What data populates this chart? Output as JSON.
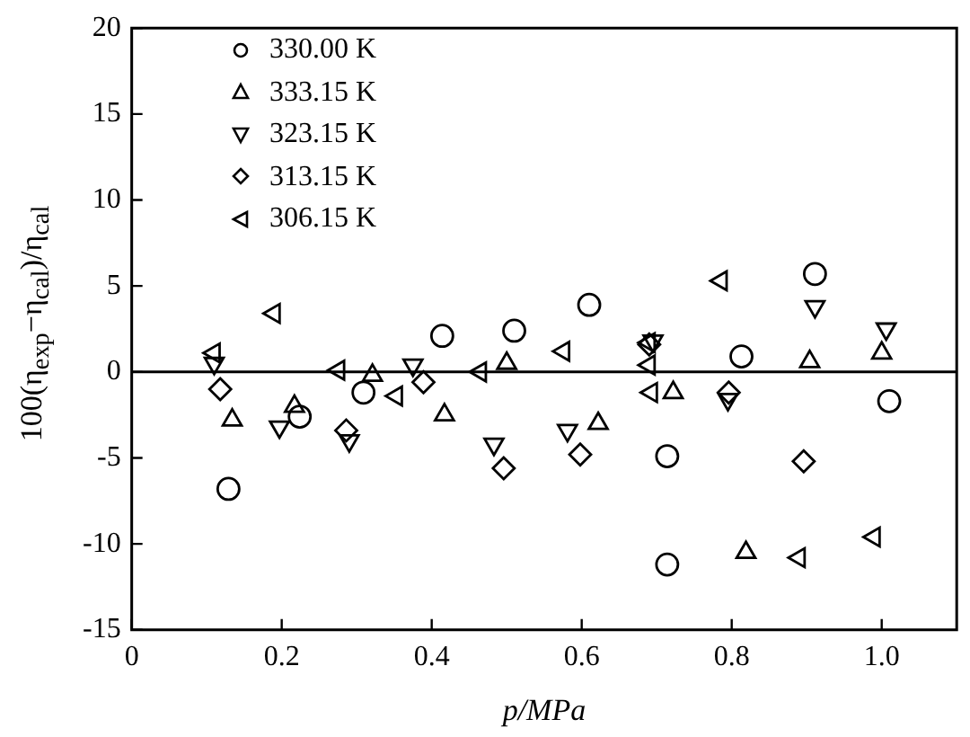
{
  "chart_data": {
    "type": "scatter",
    "xlabel": "p/MPa",
    "ylabel": "100(η$_{exp}$−η$_{cal}$)/η$_{cal}$",
    "xlim": [
      0,
      1.1
    ],
    "xticks": [
      0,
      0.2,
      0.4,
      0.6,
      0.8,
      {
        "value": 1,
        "label": "1.0"
      }
    ],
    "ylim": [
      -15,
      20
    ],
    "yticks": [
      -15,
      -10,
      -5,
      0,
      5,
      10,
      15,
      20
    ],
    "grid": false,
    "legend": "top left",
    "ref_lines": [
      {
        "axis": "y",
        "value": 0,
        "color": "#000000"
      }
    ],
    "series": [
      {
        "name": "330.00 K",
        "color": "#000000",
        "marker": "circle",
        "x": [
          0.129,
          0.224,
          0.309,
          0.414,
          0.51,
          0.61,
          0.714,
          0.714,
          0.813,
          0.911,
          1.01
        ],
        "values": [
          -6.8,
          -2.6,
          -1.2,
          2.1,
          2.4,
          3.9,
          -4.9,
          -11.2,
          0.9,
          5.7,
          -1.7
        ]
      },
      {
        "name": "333.15 K",
        "color": "#000000",
        "marker": "triangle",
        "x": [
          0.134,
          0.217,
          0.321,
          0.417,
          0.5,
          0.622,
          0.722,
          0.819,
          0.904,
          1.0
        ],
        "values": [
          -2.8,
          -2.0,
          -0.2,
          -2.5,
          0.5,
          -3.0,
          -1.2,
          -10.5,
          0.6,
          1.1
        ]
      },
      {
        "name": "323.15 K",
        "color": "#000000",
        "marker": "triangle-down",
        "x": [
          0.11,
          0.197,
          0.29,
          0.375,
          0.483,
          0.581,
          0.695,
          0.795,
          0.911,
          1.006
        ],
        "values": [
          0.5,
          -3.2,
          -4.0,
          0.4,
          -4.2,
          -3.4,
          1.8,
          -1.6,
          3.8,
          2.5
        ]
      },
      {
        "name": "313.15 K",
        "color": "#000000",
        "marker": "diamond",
        "x": [
          0.118,
          0.286,
          0.389,
          0.496,
          0.598,
          0.69,
          0.796,
          0.896
        ],
        "values": [
          -1.0,
          -3.4,
          -0.6,
          -5.6,
          -4.8,
          1.6,
          -1.2,
          -5.2
        ]
      },
      {
        "name": "306.15 K",
        "color": "#000000",
        "marker": "triangle-left",
        "x": [
          0.11,
          0.19,
          0.276,
          0.353,
          0.465,
          0.576,
          0.69,
          0.69,
          0.693,
          0.786,
          0.89,
          0.99
        ],
        "values": [
          1.1,
          3.4,
          0.1,
          -1.4,
          0.0,
          1.2,
          1.7,
          0.4,
          -1.2,
          5.3,
          -10.8,
          -9.6
        ]
      }
    ]
  }
}
